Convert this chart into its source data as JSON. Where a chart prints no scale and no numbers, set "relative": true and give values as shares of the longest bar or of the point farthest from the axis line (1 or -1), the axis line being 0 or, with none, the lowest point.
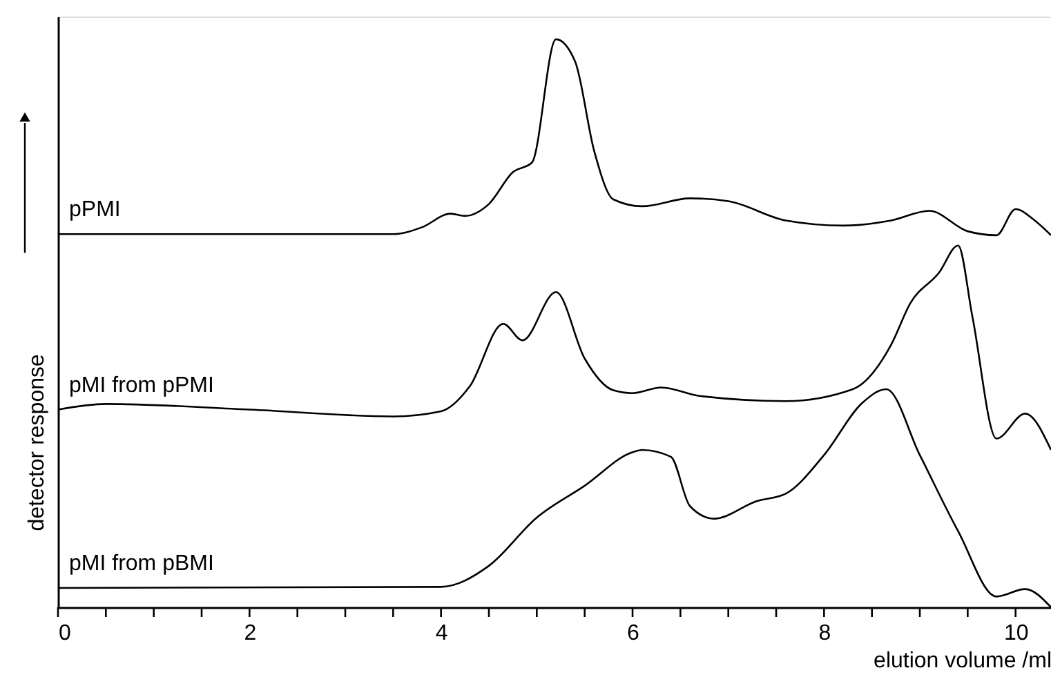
{
  "chart_data": {
    "type": "line",
    "relative": true,
    "xlabel": "elution volume /ml",
    "ylabel": "detector response",
    "xlim": [
      0,
      10.37
    ],
    "xticks": [
      0,
      {
        "value": 0.5,
        "label": null
      },
      {
        "value": 1,
        "label": null
      },
      {
        "value": 1.5,
        "label": null
      },
      2,
      {
        "value": 2.5,
        "label": null
      },
      {
        "value": 3,
        "label": null
      },
      {
        "value": 3.5,
        "label": null
      },
      4,
      {
        "value": 4.5,
        "label": null
      },
      {
        "value": 5,
        "label": null
      },
      {
        "value": 5.5,
        "label": null
      },
      6,
      {
        "value": 6.5,
        "label": null
      },
      {
        "value": 7,
        "label": null
      },
      {
        "value": 7.5,
        "label": null
      },
      8,
      {
        "value": 8.5,
        "label": null
      },
      {
        "value": 9,
        "label": null
      },
      {
        "value": 9.5,
        "label": null
      },
      10
    ],
    "tick_labels": "x",
    "grid": false,
    "marker": "none",
    "line_style": "solid",
    "series": [
      {
        "name": "pPMI",
        "color": "#000000",
        "x": [
          0,
          3.5,
          3.8,
          4.1,
          4.25,
          4.5,
          4.75,
          4.95,
          5.2,
          5.4,
          5.6,
          5.8,
          6.1,
          6.6,
          7.0,
          7.6,
          8.2,
          8.7,
          9.1,
          9.5,
          9.8,
          10.0,
          10.2,
          10.37
        ],
        "values": [
          0.657,
          0.657,
          0.669,
          0.693,
          0.689,
          0.71,
          0.766,
          0.783,
          1.0,
          0.961,
          0.803,
          0.718,
          0.706,
          0.72,
          0.715,
          0.681,
          0.672,
          0.681,
          0.698,
          0.662,
          0.655,
          0.701,
          0.681,
          0.655
        ]
      },
      {
        "name": "pMI from pPMI",
        "color": "#000000",
        "x": [
          0,
          0.5,
          2,
          3.5,
          4.0,
          4.3,
          4.65,
          4.85,
          5.2,
          5.5,
          5.8,
          6.0,
          6.3,
          6.7,
          7.6,
          8.3,
          8.7,
          8.9,
          9.2,
          9.4,
          9.55,
          9.8,
          10.1,
          10.37
        ],
        "values": [
          0.348,
          0.358,
          0.348,
          0.336,
          0.345,
          0.389,
          0.499,
          0.47,
          0.555,
          0.438,
          0.382,
          0.377,
          0.387,
          0.372,
          0.363,
          0.384,
          0.462,
          0.535,
          0.589,
          0.637,
          0.511,
          0.297,
          0.341,
          0.277
        ]
      },
      {
        "name": "pMI from pBMI",
        "color": "#000000",
        "x": [
          0,
          4.0,
          4.5,
          5.0,
          5.5,
          6.0,
          6.1,
          6.4,
          6.6,
          6.85,
          7.3,
          7.6,
          8.0,
          8.4,
          8.65,
          9.0,
          9.4,
          9.8,
          10.1,
          10.37
        ],
        "values": [
          0.034,
          0.036,
          0.073,
          0.158,
          0.214,
          0.273,
          0.277,
          0.265,
          0.178,
          0.156,
          0.187,
          0.2,
          0.268,
          0.36,
          0.384,
          0.268,
          0.134,
          0.019,
          0.032,
          0.0
        ]
      }
    ]
  }
}
